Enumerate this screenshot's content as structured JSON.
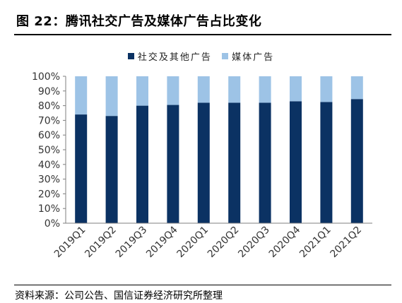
{
  "figure_title": "图 22：腾讯社交广告及媒体广告占比变化",
  "source_note": "资料来源：公司公告、国信证券经济研究所整理",
  "colors": {
    "primary": "#0b3263",
    "secondary": "#9dc3e6",
    "axis": "#7f7f7f"
  },
  "chart_data": {
    "type": "bar",
    "stacked": true,
    "categories": [
      "2019Q1",
      "2019Q2",
      "2019Q3",
      "2019Q4",
      "2020Q1",
      "2020Q2",
      "2020Q3",
      "2020Q4",
      "2021Q1",
      "2021Q2"
    ],
    "series": [
      {
        "name": "社交及其他广告",
        "values": [
          74,
          73,
          80,
          80.5,
          82,
          82,
          82,
          83,
          82.5,
          84.5
        ]
      },
      {
        "name": "媒体广告",
        "values": [
          26,
          27,
          20,
          19.5,
          18,
          18,
          18,
          17,
          17.5,
          15.5
        ]
      }
    ],
    "yticks": [
      "0%",
      "10%",
      "20%",
      "30%",
      "40%",
      "50%",
      "60%",
      "70%",
      "80%",
      "90%",
      "100%"
    ],
    "ylim": [
      0,
      100
    ],
    "legend_position": "top",
    "grid": false
  }
}
